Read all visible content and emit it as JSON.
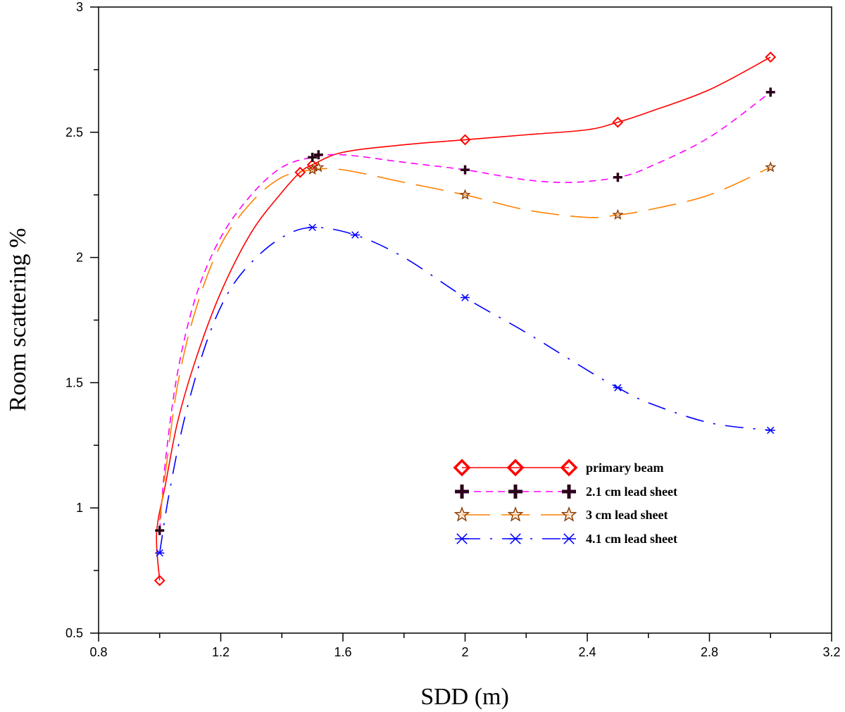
{
  "chart_data": {
    "type": "line",
    "title": "",
    "xlabel": "SDD (m)",
    "ylabel": "Room scattering %",
    "xlim": [
      0.8,
      3.2
    ],
    "ylim": [
      0.5,
      3
    ],
    "x_ticks": [
      "0.8",
      "1.2",
      "1.6",
      "2",
      "2.4",
      "2.8",
      "3.2"
    ],
    "y_ticks": [
      "0.5",
      "1",
      "1.5",
      "2",
      "2.5",
      "3"
    ],
    "grid": false,
    "legend_position": "lower-right",
    "series": [
      {
        "name": "primary beam",
        "color": "#ff0000",
        "marker": "diamond",
        "dash": "",
        "points": [
          [
            1.0,
            0.71
          ],
          [
            1.46,
            2.34
          ],
          [
            1.5,
            2.37
          ],
          [
            2.0,
            2.47
          ],
          [
            2.5,
            2.54
          ],
          [
            3.0,
            2.8
          ]
        ],
        "curve": [
          [
            1.0,
            0.71
          ],
          [
            0.99,
            0.9
          ],
          [
            1.02,
            1.1
          ],
          [
            1.06,
            1.35
          ],
          [
            1.12,
            1.6
          ],
          [
            1.2,
            1.86
          ],
          [
            1.3,
            2.1
          ],
          [
            1.4,
            2.26
          ],
          [
            1.46,
            2.34
          ],
          [
            1.5,
            2.37
          ],
          [
            1.6,
            2.42
          ],
          [
            1.8,
            2.45
          ],
          [
            2.0,
            2.47
          ],
          [
            2.2,
            2.49
          ],
          [
            2.4,
            2.51
          ],
          [
            2.5,
            2.54
          ],
          [
            2.6,
            2.58
          ],
          [
            2.8,
            2.67
          ],
          [
            3.0,
            2.8
          ]
        ]
      },
      {
        "name": "2.1 cm lead sheet",
        "color": "#ff00ff",
        "marker_color": "#2a001a",
        "marker": "plus",
        "dash": "10,7",
        "points": [
          [
            1.0,
            0.91
          ],
          [
            1.5,
            2.4
          ],
          [
            1.52,
            2.41
          ],
          [
            2.0,
            2.35
          ],
          [
            2.5,
            2.32
          ],
          [
            3.0,
            2.66
          ]
        ],
        "curve": [
          [
            1.0,
            0.91
          ],
          [
            1.02,
            1.2
          ],
          [
            1.06,
            1.55
          ],
          [
            1.12,
            1.85
          ],
          [
            1.2,
            2.08
          ],
          [
            1.3,
            2.25
          ],
          [
            1.4,
            2.36
          ],
          [
            1.5,
            2.4
          ],
          [
            1.6,
            2.41
          ],
          [
            1.8,
            2.38
          ],
          [
            2.0,
            2.35
          ],
          [
            2.2,
            2.31
          ],
          [
            2.35,
            2.3
          ],
          [
            2.5,
            2.32
          ],
          [
            2.6,
            2.36
          ],
          [
            2.8,
            2.48
          ],
          [
            3.0,
            2.66
          ]
        ]
      },
      {
        "name": "3 cm lead sheet",
        "color": "#ff8000",
        "marker_color": "#8b3a00",
        "marker": "star",
        "dash": "40,16",
        "points": [
          [
            1.5,
            2.35
          ],
          [
            1.52,
            2.36
          ],
          [
            2.0,
            2.25
          ],
          [
            2.5,
            2.17
          ],
          [
            3.0,
            2.36
          ]
        ],
        "curve": [
          [
            1.0,
            0.95
          ],
          [
            1.02,
            1.15
          ],
          [
            1.06,
            1.5
          ],
          [
            1.12,
            1.8
          ],
          [
            1.2,
            2.05
          ],
          [
            1.3,
            2.22
          ],
          [
            1.4,
            2.32
          ],
          [
            1.5,
            2.35
          ],
          [
            1.6,
            2.35
          ],
          [
            1.8,
            2.3
          ],
          [
            2.0,
            2.25
          ],
          [
            2.2,
            2.19
          ],
          [
            2.4,
            2.16
          ],
          [
            2.5,
            2.17
          ],
          [
            2.6,
            2.19
          ],
          [
            2.8,
            2.25
          ],
          [
            3.0,
            2.36
          ]
        ]
      },
      {
        "name": "4.1 cm lead sheet",
        "color": "#0000ff",
        "marker": "asterisk",
        "dash": "26,14,3,14",
        "points": [
          [
            1.0,
            0.82
          ],
          [
            1.5,
            2.12
          ],
          [
            1.64,
            2.09
          ],
          [
            2.0,
            1.84
          ],
          [
            2.5,
            1.48
          ],
          [
            3.0,
            1.31
          ]
        ],
        "curve": [
          [
            1.0,
            0.82
          ],
          [
            1.03,
            1.05
          ],
          [
            1.08,
            1.35
          ],
          [
            1.15,
            1.65
          ],
          [
            1.22,
            1.85
          ],
          [
            1.3,
            1.98
          ],
          [
            1.4,
            2.08
          ],
          [
            1.5,
            2.12
          ],
          [
            1.64,
            2.09
          ],
          [
            1.8,
            2.0
          ],
          [
            2.0,
            1.84
          ],
          [
            2.2,
            1.7
          ],
          [
            2.4,
            1.55
          ],
          [
            2.5,
            1.48
          ],
          [
            2.6,
            1.42
          ],
          [
            2.8,
            1.34
          ],
          [
            3.0,
            1.31
          ]
        ]
      }
    ]
  }
}
